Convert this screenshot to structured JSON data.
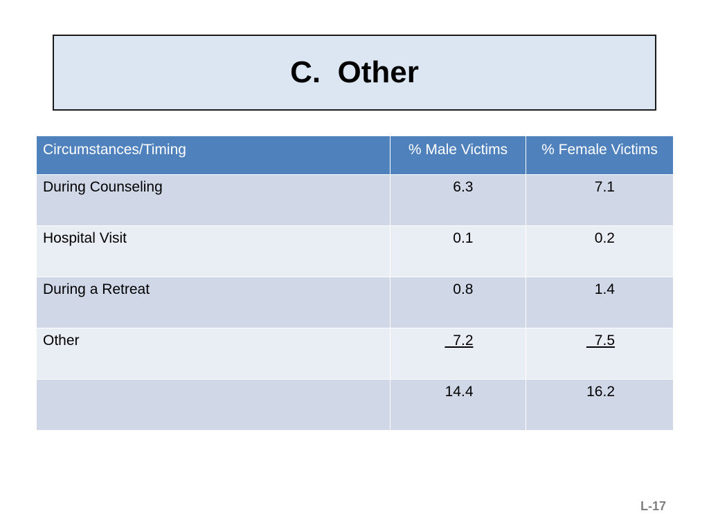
{
  "slide": {
    "title": "C.  Other",
    "slide_number": "L-17"
  },
  "table": {
    "headers": [
      "Circumstances/Timing",
      "% Male Victims",
      "% Female Victims"
    ],
    "rows": [
      [
        "During Counseling",
        "6.3",
        "7.1"
      ],
      [
        "Hospital Visit",
        "0.1",
        "0.2"
      ],
      [
        "During a Retreat",
        "0.8",
        "1.4"
      ],
      [
        "Other",
        "_7.2",
        "_7.5"
      ],
      [
        "",
        "14.4",
        "16.2"
      ]
    ]
  },
  "colors": {
    "header_bg": "#4f81bd",
    "row_dark": "#d0d8e8",
    "row_light": "#e9edf4",
    "title_bg": "#dce6f2"
  }
}
